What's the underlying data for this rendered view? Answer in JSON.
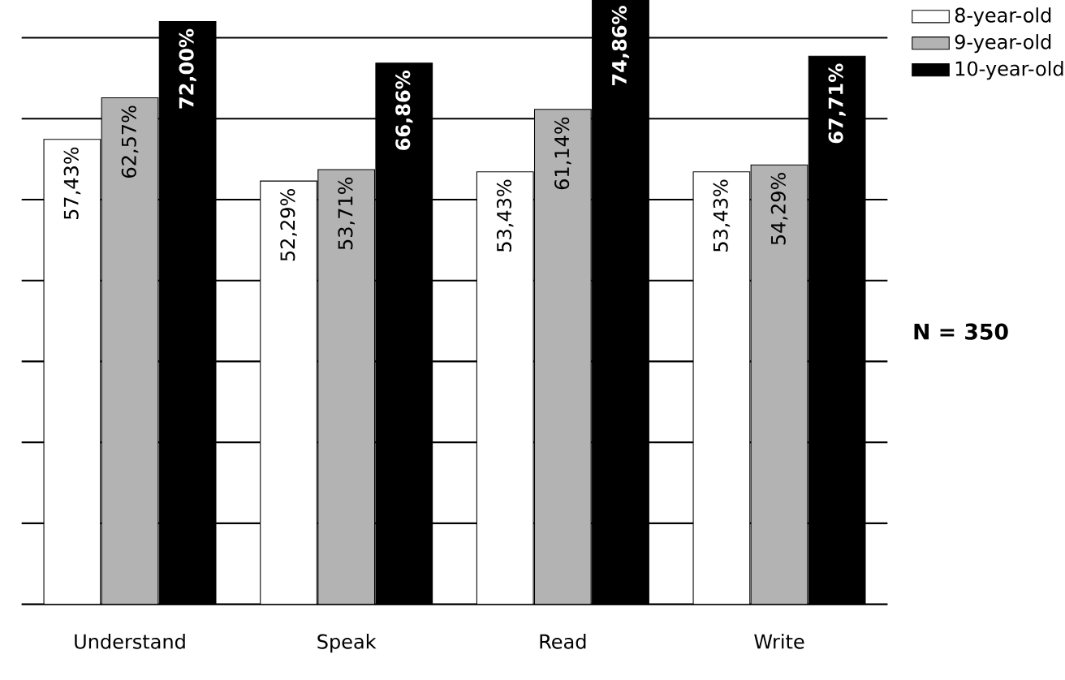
{
  "chart_data": {
    "type": "bar",
    "categories": [
      "Understand",
      "Speak",
      "Read",
      "Write"
    ],
    "series": [
      {
        "name": "8-year-old",
        "color": "#ffffff",
        "values": [
          57.43,
          52.29,
          53.43,
          53.43
        ],
        "value_labels": [
          "57,43%",
          "52,29%",
          "53,43%",
          "53,43%"
        ]
      },
      {
        "name": "9-year-old",
        "color": "#b3b3b3",
        "values": [
          62.57,
          53.71,
          61.14,
          54.29
        ],
        "value_labels": [
          "62,57%",
          "53,71%",
          "61,14%",
          "54,29%"
        ]
      },
      {
        "name": "10-year-old",
        "color": "#000000",
        "values": [
          72.0,
          66.86,
          74.86,
          67.71
        ],
        "value_labels": [
          "72,00%",
          "66,86%",
          "74,86%",
          "67,71%"
        ]
      }
    ],
    "grid": "y",
    "legend": "right",
    "tick_labels": "x",
    "annotations": [
      "N = 350"
    ]
  }
}
